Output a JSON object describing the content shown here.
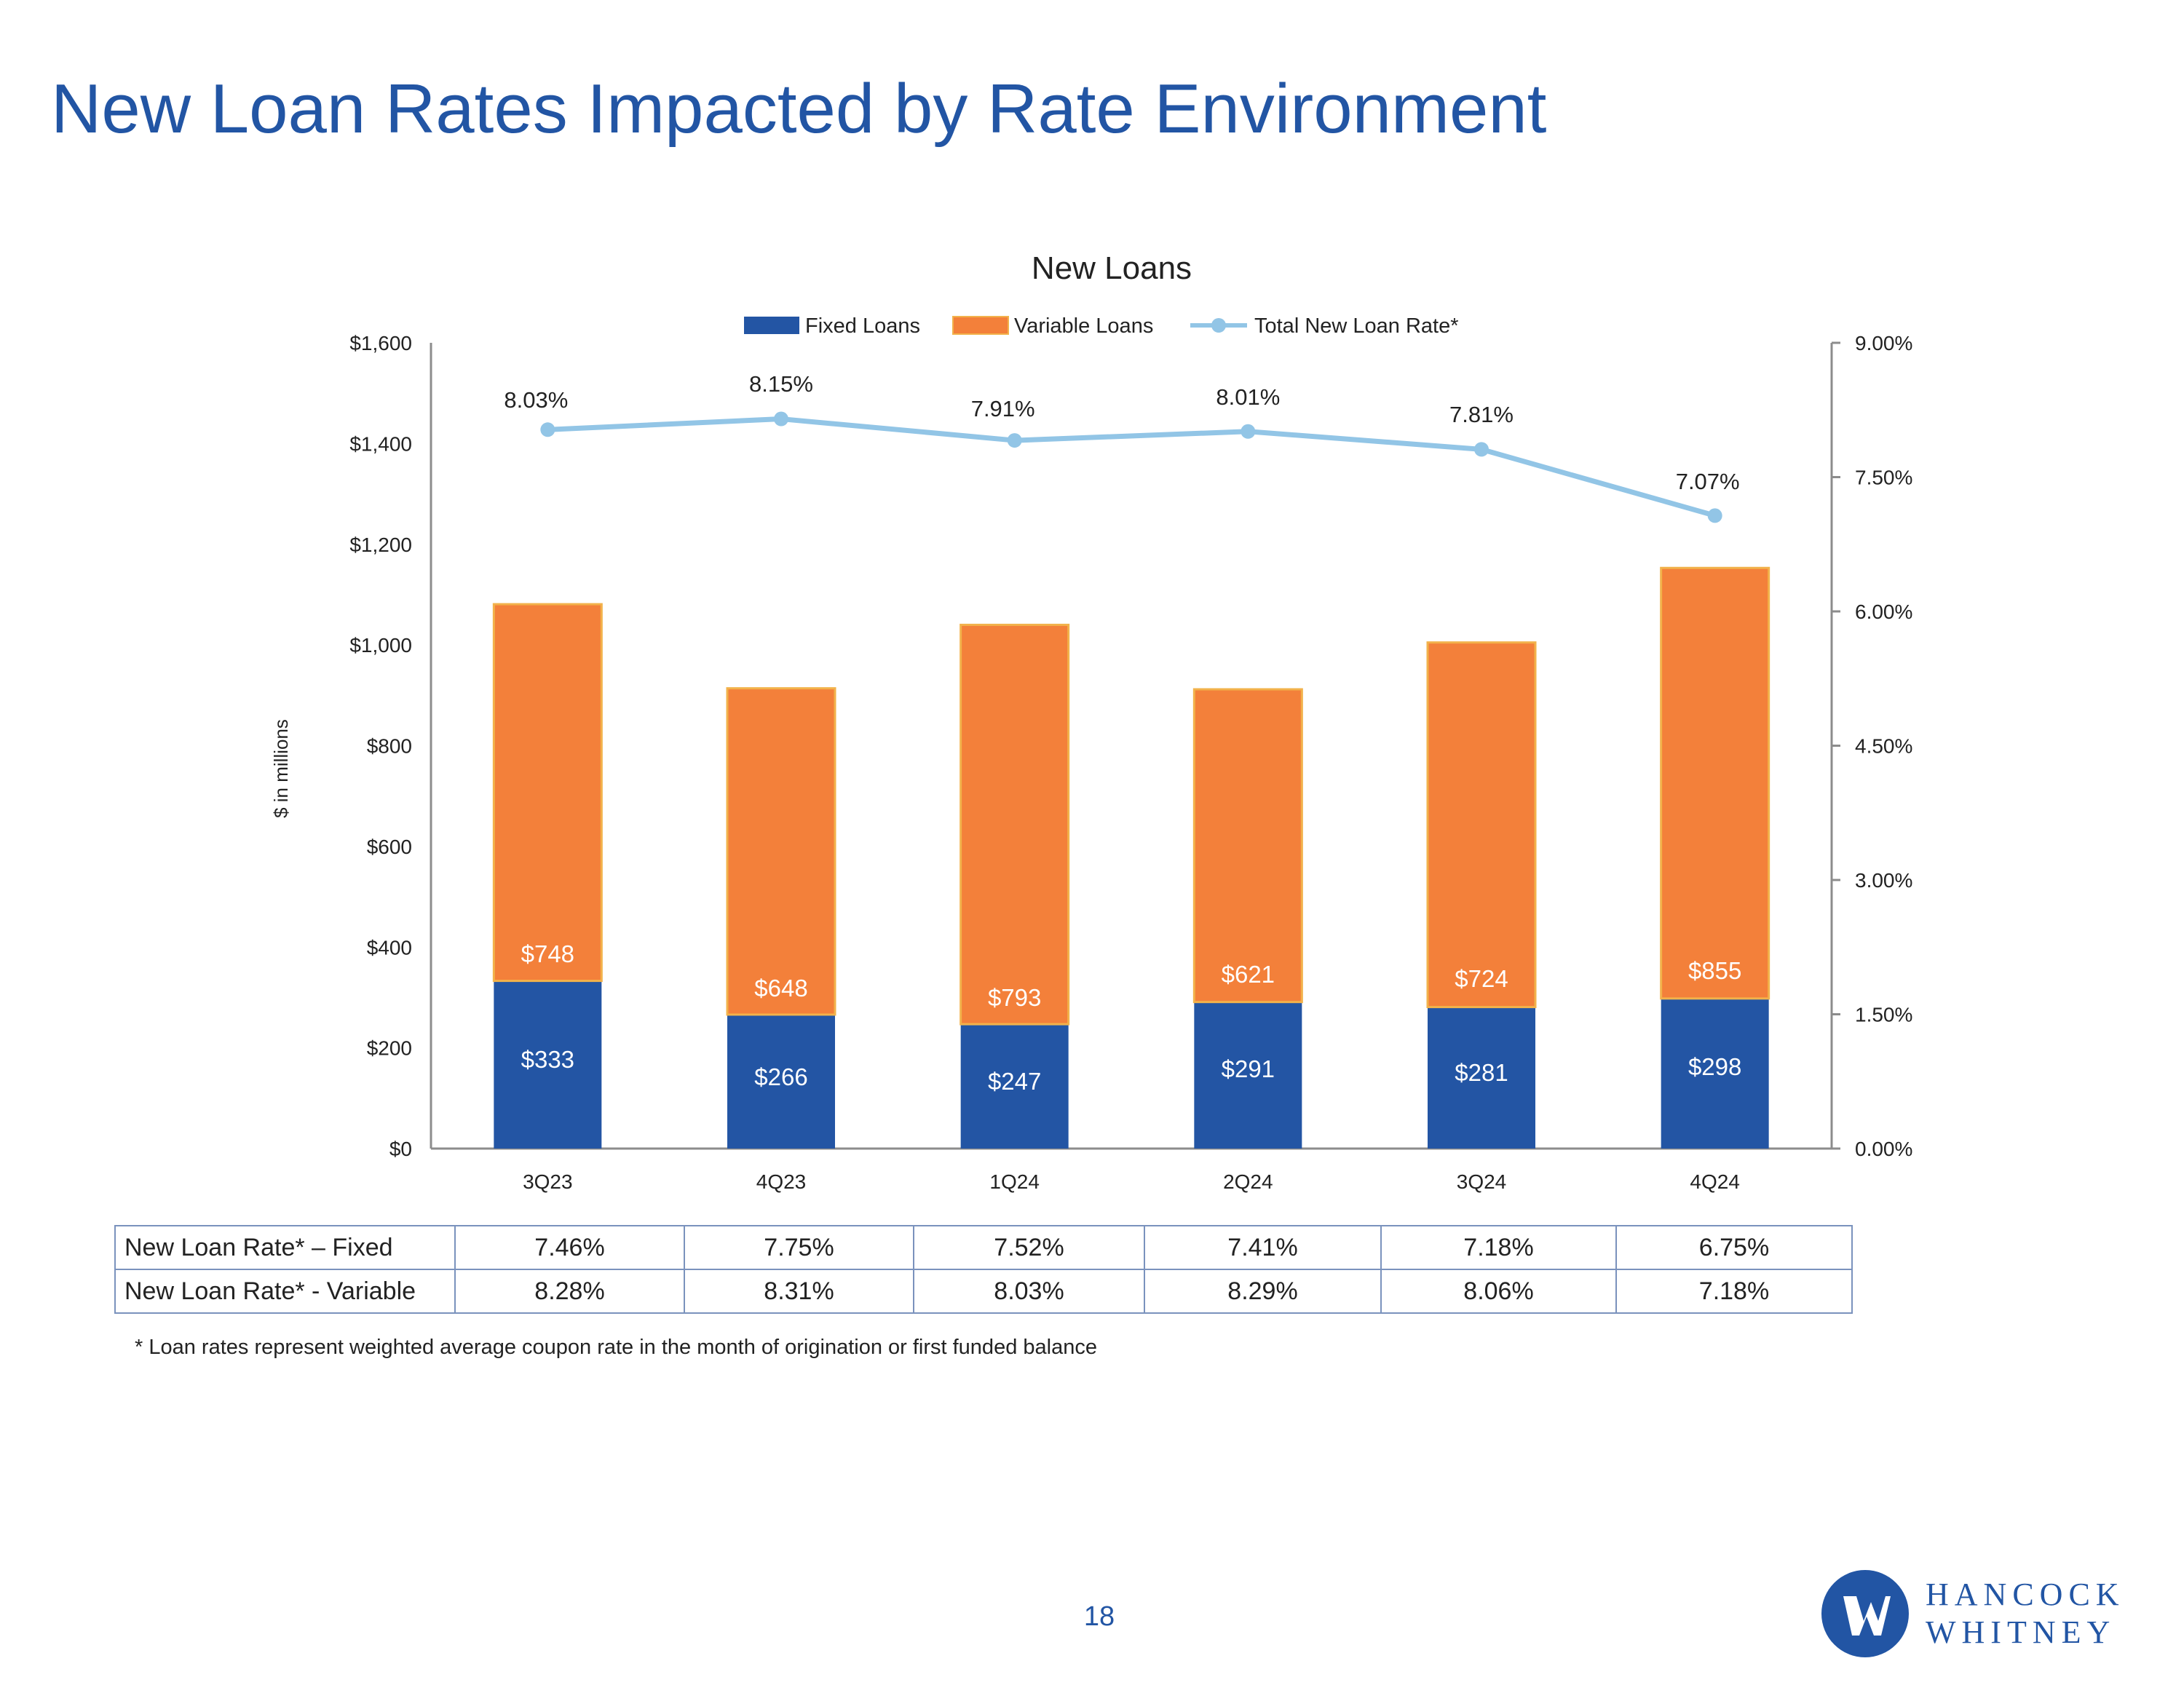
{
  "page": {
    "title": "New Loan Rates Impacted by Rate Environment",
    "page_number": "18",
    "footnote": "* Loan rates represent weighted average coupon rate in the month of origination or first funded balance",
    "logo": {
      "line1": "HANCOCK",
      "line2": "WHITNEY"
    }
  },
  "colors": {
    "fixed": "#2355A4",
    "variable": "#F3803A",
    "variable_border": "#F2B24B",
    "rate_line": "#92C5E6",
    "title": "#2255A4"
  },
  "chart_data": {
    "type": "bar",
    "stacked": true,
    "title": "New Loans",
    "categories": [
      "3Q23",
      "4Q23",
      "1Q24",
      "2Q24",
      "3Q24",
      "4Q24"
    ],
    "series": [
      {
        "name": "Fixed Loans",
        "type": "bar",
        "axis": "left",
        "values": [
          333,
          266,
          247,
          291,
          281,
          298
        ],
        "labels": [
          "$333",
          "$266",
          "$247",
          "$291",
          "$281",
          "$298"
        ]
      },
      {
        "name": "Variable Loans",
        "type": "bar",
        "axis": "left",
        "values": [
          748,
          648,
          793,
          621,
          724,
          855
        ],
        "labels": [
          "$748",
          "$648",
          "$793",
          "$621",
          "$724",
          "$855"
        ]
      },
      {
        "name": "Total New Loan Rate*",
        "type": "line",
        "axis": "right",
        "values": [
          8.03,
          8.15,
          7.91,
          8.01,
          7.81,
          7.07
        ],
        "labels": [
          "8.03%",
          "8.15%",
          "7.91%",
          "8.01%",
          "7.81%",
          "7.07%"
        ]
      }
    ],
    "ylabel": "$ in millions",
    "ylim": [
      0,
      1600
    ],
    "y_ticks": [
      "$0",
      "$200",
      "$400",
      "$600",
      "$800",
      "$1,000",
      "$1,200",
      "$1,400",
      "$1,600"
    ],
    "y2lim": [
      0,
      9
    ],
    "y2_ticks": [
      "0.00%",
      "1.50%",
      "3.00%",
      "4.50%",
      "6.00%",
      "7.50%",
      "9.00%"
    ],
    "legend": "top-center",
    "grid": false
  },
  "table": {
    "rows": [
      {
        "label": "New Loan Rate* – Fixed",
        "values": [
          "7.46%",
          "7.75%",
          "7.52%",
          "7.41%",
          "7.18%",
          "6.75%"
        ]
      },
      {
        "label": "New Loan Rate* - Variable",
        "values": [
          "8.28%",
          "8.31%",
          "8.03%",
          "8.29%",
          "8.06%",
          "7.18%"
        ]
      }
    ]
  }
}
